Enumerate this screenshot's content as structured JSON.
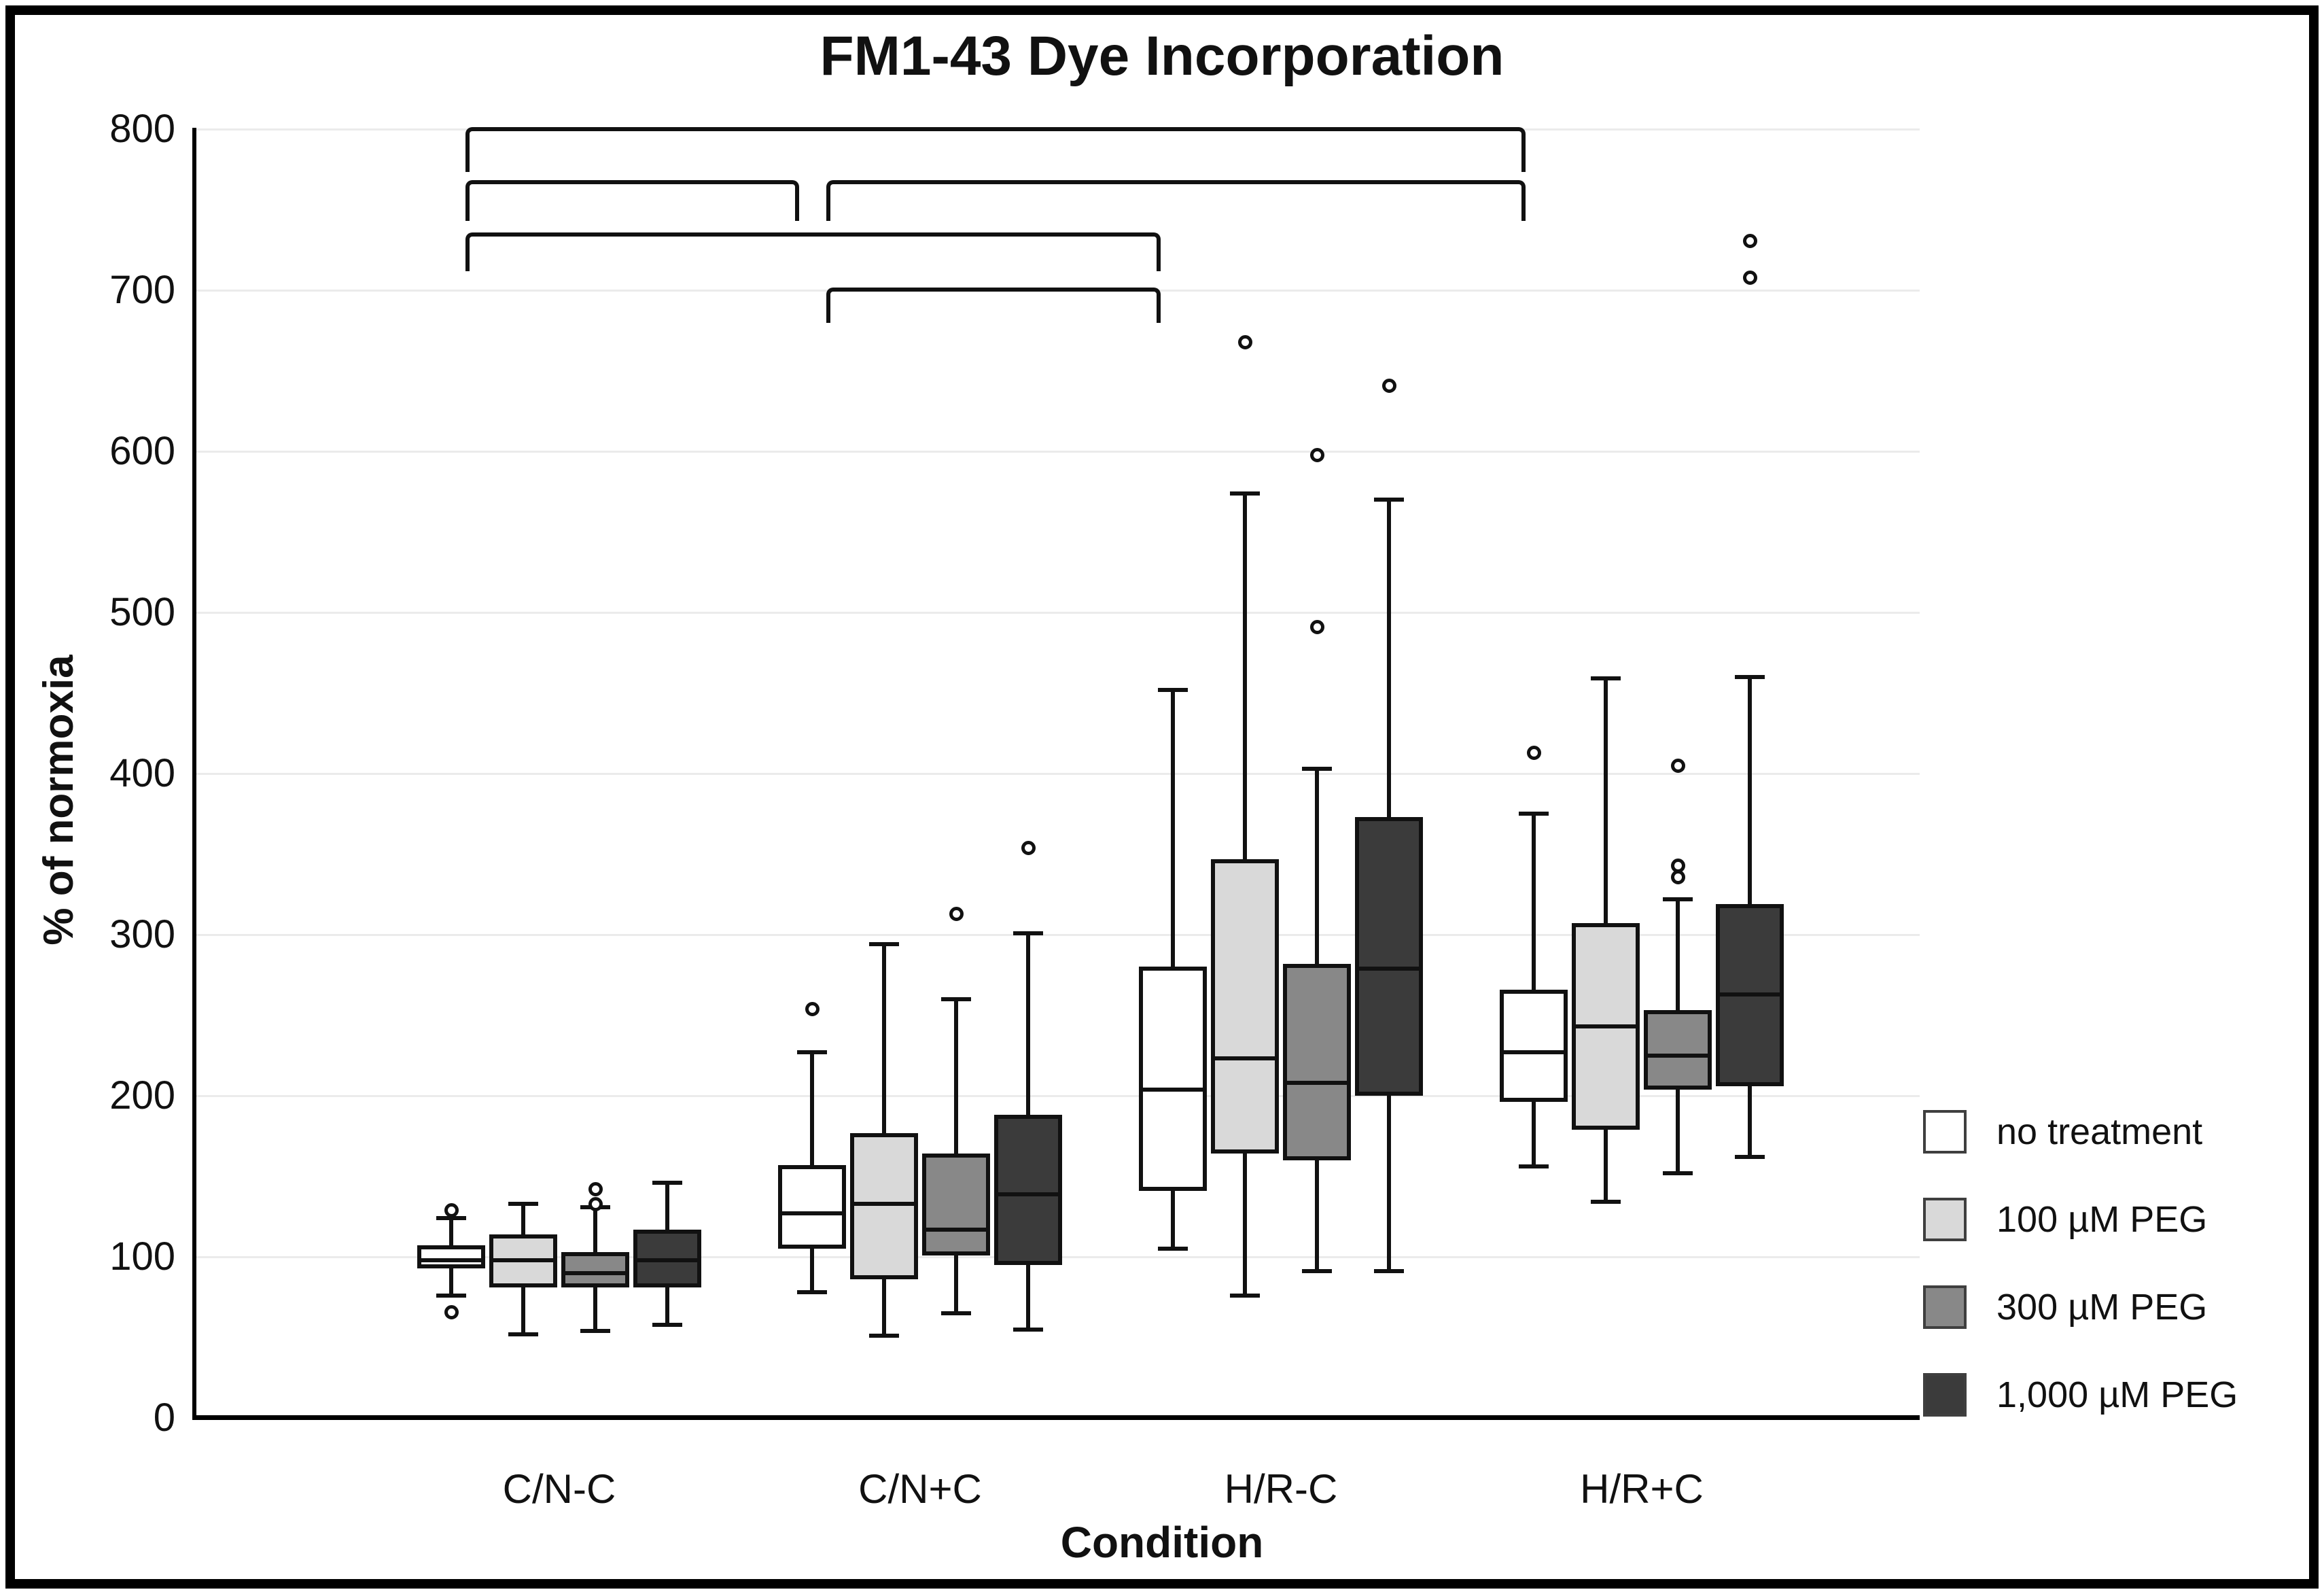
{
  "figure": {
    "title": "FM1-43 Dye Incorporation"
  },
  "axes": {
    "y_title": "% of normoxia",
    "x_title": "Condition",
    "y_tick_labels": [
      "0",
      "100",
      "200",
      "300",
      "400",
      "500",
      "600",
      "700",
      "800"
    ]
  },
  "legend": {
    "items": [
      {
        "label": "no treatment",
        "color": "#ffffff"
      },
      {
        "label": "100 µM PEG",
        "color": "#d9d9d9"
      },
      {
        "label": "300 µM PEG",
        "color": "#888888"
      },
      {
        "label": "1,000 µM PEG",
        "color": "#3b3b3b"
      }
    ]
  },
  "chart_data": {
    "type": "box",
    "title": "FM1-43 Dye Incorporation",
    "xlabel": "Condition",
    "ylabel": "% of normoxia",
    "ylim": [
      0,
      800
    ],
    "y_tick_step": 100,
    "grid": "horizontal, light gray",
    "legend_position": "right, lower",
    "categories": [
      "C/N-C",
      "C/N+C",
      "H/R-C",
      "H/R+C"
    ],
    "series": [
      {
        "name": "no treatment",
        "fill": "#ffffff",
        "boxes": [
          {
            "category": "C/N-C",
            "low": 76,
            "q1": 93,
            "median": 98,
            "q3": 107,
            "high": 124,
            "outliers": [
              129,
              66
            ]
          },
          {
            "category": "C/N+C",
            "low": 78,
            "q1": 105,
            "median": 127,
            "q3": 157,
            "high": 227,
            "outliers": [
              254
            ]
          },
          {
            "category": "H/R-C",
            "low": 105,
            "q1": 141,
            "median": 204,
            "q3": 280,
            "high": 452,
            "outliers": []
          },
          {
            "category": "H/R+C",
            "low": 156,
            "q1": 196,
            "median": 227,
            "q3": 266,
            "high": 375,
            "outliers": [
              413
            ]
          }
        ]
      },
      {
        "name": "100 µM PEG",
        "fill": "#d9d9d9",
        "boxes": [
          {
            "category": "C/N-C",
            "low": 52,
            "q1": 81,
            "median": 98,
            "q3": 114,
            "high": 133,
            "outliers": []
          },
          {
            "category": "C/N+C",
            "low": 51,
            "q1": 86,
            "median": 133,
            "q3": 177,
            "high": 294,
            "outliers": []
          },
          {
            "category": "H/R-C",
            "low": 76,
            "q1": 164,
            "median": 223,
            "q3": 347,
            "high": 574,
            "outliers": [
              668
            ]
          },
          {
            "category": "H/R+C",
            "low": 134,
            "q1": 179,
            "median": 243,
            "q3": 307,
            "high": 459,
            "outliers": []
          }
        ]
      },
      {
        "name": "300 µM PEG",
        "fill": "#888888",
        "boxes": [
          {
            "category": "C/N-C",
            "low": 54,
            "q1": 81,
            "median": 90,
            "q3": 103,
            "high": 131,
            "outliers": [
              142,
              133
            ]
          },
          {
            "category": "C/N+C",
            "low": 65,
            "q1": 101,
            "median": 117,
            "q3": 164,
            "high": 260,
            "outliers": [
              313
            ]
          },
          {
            "category": "H/R-C",
            "low": 91,
            "q1": 160,
            "median": 208,
            "q3": 282,
            "high": 403,
            "outliers": [
              598,
              491
            ]
          },
          {
            "category": "H/R+C",
            "low": 152,
            "q1": 204,
            "median": 225,
            "q3": 253,
            "high": 322,
            "outliers": [
              405,
              343,
              336
            ]
          }
        ]
      },
      {
        "name": "1,000 µM PEG",
        "fill": "#3b3b3b",
        "boxes": [
          {
            "category": "C/N-C",
            "low": 58,
            "q1": 81,
            "median": 98,
            "q3": 117,
            "high": 146,
            "outliers": []
          },
          {
            "category": "C/N+C",
            "low": 55,
            "q1": 95,
            "median": 139,
            "q3": 188,
            "high": 301,
            "outliers": [
              354
            ]
          },
          {
            "category": "H/R-C",
            "low": 91,
            "q1": 200,
            "median": 279,
            "q3": 373,
            "high": 570,
            "outliers": [
              641
            ]
          },
          {
            "category": "H/R+C",
            "low": 162,
            "q1": 206,
            "median": 263,
            "q3": 319,
            "high": 460,
            "outliers": [
              731,
              708
            ]
          }
        ]
      }
    ],
    "significance_brackets": [
      {
        "between": [
          "C/N-C",
          "H/R+C"
        ],
        "row": 1
      },
      {
        "between": [
          "C/N-C",
          "C/N+C"
        ],
        "row": 2
      },
      {
        "between": [
          "C/N+C",
          "H/R+C"
        ],
        "row": 2
      },
      {
        "between": [
          "C/N-C",
          "H/R-C"
        ],
        "row": 3
      },
      {
        "between": [
          "C/N+C",
          "H/R-C"
        ],
        "row": 4
      }
    ]
  }
}
